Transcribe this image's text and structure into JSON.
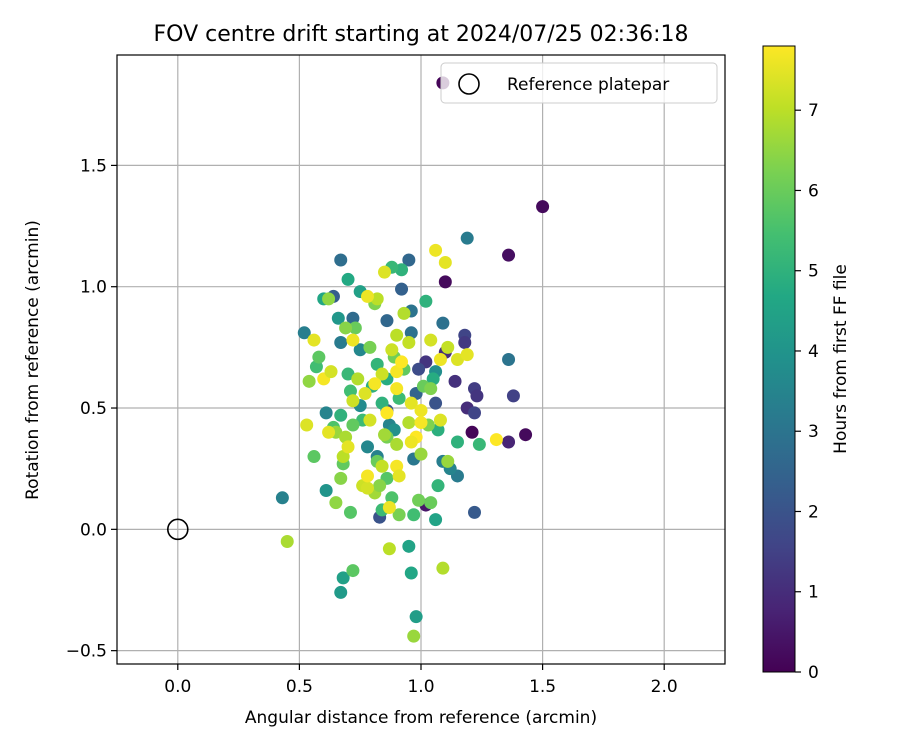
{
  "chart_data": {
    "type": "scatter",
    "title": "FOV centre drift starting at 2024/07/25 02:36:18",
    "xlabel": "Angular distance from reference (arcmin)",
    "ylabel": "Rotation from reference (arcmin)",
    "xlim": [
      -0.25,
      2.25
    ],
    "ylim": [
      -0.555,
      1.955
    ],
    "xticks": [
      "0.0",
      "0.5",
      "1.0",
      "1.5",
      "2.0"
    ],
    "yticks": [
      "−0.5",
      "0.0",
      "0.5",
      "1.0",
      "1.5"
    ],
    "grid": true,
    "legend": {
      "placement": "top-right",
      "label": "Reference platepar"
    },
    "reference_point": {
      "x": 0.0,
      "y": 0.0
    },
    "colorbar": {
      "label": "Hours from first FF file",
      "min": 0,
      "max": 7.8,
      "ticks": [
        "0",
        "1",
        "2",
        "3",
        "4",
        "5",
        "6",
        "7"
      ],
      "colormap": "viridis"
    },
    "points": [
      {
        "x": 1.09,
        "y": 1.84,
        "h": 0.1
      },
      {
        "x": 1.5,
        "y": 1.33,
        "h": 0.2
      },
      {
        "x": 1.36,
        "y": 1.13,
        "h": 0.3
      },
      {
        "x": 1.1,
        "y": 1.02,
        "h": 0.2
      },
      {
        "x": 1.43,
        "y": 0.39,
        "h": 0.2
      },
      {
        "x": 1.21,
        "y": 0.4,
        "h": 0.1
      },
      {
        "x": 1.36,
        "y": 0.36,
        "h": 0.8
      },
      {
        "x": 1.38,
        "y": 0.55,
        "h": 1.5
      },
      {
        "x": 1.22,
        "y": 0.58,
        "h": 1.4
      },
      {
        "x": 1.23,
        "y": 0.55,
        "h": 1.2
      },
      {
        "x": 1.18,
        "y": 0.8,
        "h": 1.6
      },
      {
        "x": 1.18,
        "y": 0.77,
        "h": 1.3
      },
      {
        "x": 1.19,
        "y": 0.5,
        "h": 1.0
      },
      {
        "x": 1.22,
        "y": 0.48,
        "h": 1.6
      },
      {
        "x": 1.14,
        "y": 0.61,
        "h": 1.1
      },
      {
        "x": 1.1,
        "y": 0.73,
        "h": 1.0
      },
      {
        "x": 1.02,
        "y": 0.69,
        "h": 1.2
      },
      {
        "x": 0.99,
        "y": 0.66,
        "h": 1.8
      },
      {
        "x": 1.06,
        "y": 0.52,
        "h": 2.0
      },
      {
        "x": 0.98,
        "y": 0.56,
        "h": 2.5
      },
      {
        "x": 1.02,
        "y": 0.1,
        "h": 0.5
      },
      {
        "x": 1.22,
        "y": 0.07,
        "h": 2.2
      },
      {
        "x": 0.83,
        "y": 0.05,
        "h": 2.0
      },
      {
        "x": 0.86,
        "y": 0.49,
        "h": 2.2
      },
      {
        "x": 0.92,
        "y": 0.99,
        "h": 2.4
      },
      {
        "x": 0.95,
        "y": 1.11,
        "h": 2.6
      },
      {
        "x": 0.67,
        "y": 1.11,
        "h": 2.8
      },
      {
        "x": 0.64,
        "y": 0.96,
        "h": 2.3
      },
      {
        "x": 0.72,
        "y": 0.87,
        "h": 2.7
      },
      {
        "x": 0.96,
        "y": 0.81,
        "h": 2.9
      },
      {
        "x": 0.96,
        "y": 0.9,
        "h": 3.0
      },
      {
        "x": 0.86,
        "y": 0.86,
        "h": 2.6
      },
      {
        "x": 1.09,
        "y": 0.85,
        "h": 2.9
      },
      {
        "x": 1.19,
        "y": 1.2,
        "h": 3.2
      },
      {
        "x": 1.36,
        "y": 0.7,
        "h": 3.0
      },
      {
        "x": 0.52,
        "y": 0.81,
        "h": 3.3
      },
      {
        "x": 0.43,
        "y": 0.13,
        "h": 3.4
      },
      {
        "x": 0.61,
        "y": 0.48,
        "h": 3.5
      },
      {
        "x": 0.67,
        "y": 0.77,
        "h": 3.2
      },
      {
        "x": 0.75,
        "y": 0.74,
        "h": 3.6
      },
      {
        "x": 0.78,
        "y": 0.34,
        "h": 3.6
      },
      {
        "x": 0.82,
        "y": 0.3,
        "h": 3.4
      },
      {
        "x": 0.87,
        "y": 0.43,
        "h": 3.5
      },
      {
        "x": 0.97,
        "y": 0.29,
        "h": 3.1
      },
      {
        "x": 1.09,
        "y": 0.28,
        "h": 3.3
      },
      {
        "x": 1.15,
        "y": 0.22,
        "h": 3.2
      },
      {
        "x": 1.12,
        "y": 0.25,
        "h": 3.5
      },
      {
        "x": 1.06,
        "y": 0.65,
        "h": 3.8
      },
      {
        "x": 0.89,
        "y": 0.41,
        "h": 3.9
      },
      {
        "x": 0.75,
        "y": 0.51,
        "h": 3.7
      },
      {
        "x": 0.61,
        "y": 0.16,
        "h": 4.0
      },
      {
        "x": 0.67,
        "y": -0.26,
        "h": 4.2
      },
      {
        "x": 0.68,
        "y": -0.2,
        "h": 4.4
      },
      {
        "x": 0.96,
        "y": -0.18,
        "h": 4.6
      },
      {
        "x": 0.95,
        "y": -0.07,
        "h": 4.5
      },
      {
        "x": 0.98,
        "y": -0.36,
        "h": 4.3
      },
      {
        "x": 1.06,
        "y": 0.04,
        "h": 4.5
      },
      {
        "x": 1.05,
        "y": 0.62,
        "h": 4.8
      },
      {
        "x": 1.07,
        "y": 0.41,
        "h": 4.9
      },
      {
        "x": 0.7,
        "y": 1.03,
        "h": 4.7
      },
      {
        "x": 0.75,
        "y": 0.98,
        "h": 4.4
      },
      {
        "x": 0.6,
        "y": 0.95,
        "h": 4.6
      },
      {
        "x": 0.66,
        "y": 0.87,
        "h": 4.1
      },
      {
        "x": 0.92,
        "y": 1.07,
        "h": 5.0
      },
      {
        "x": 0.88,
        "y": 1.08,
        "h": 5.2
      },
      {
        "x": 1.02,
        "y": 0.94,
        "h": 5.0
      },
      {
        "x": 0.82,
        "y": 0.68,
        "h": 5.1
      },
      {
        "x": 0.7,
        "y": 0.64,
        "h": 5.2
      },
      {
        "x": 0.8,
        "y": 0.59,
        "h": 4.9
      },
      {
        "x": 0.91,
        "y": 0.54,
        "h": 5.3
      },
      {
        "x": 0.84,
        "y": 0.52,
        "h": 5.0
      },
      {
        "x": 0.86,
        "y": 0.62,
        "h": 4.8
      },
      {
        "x": 0.71,
        "y": 0.57,
        "h": 5.4
      },
      {
        "x": 0.67,
        "y": 0.47,
        "h": 5.0
      },
      {
        "x": 0.76,
        "y": 0.45,
        "h": 5.3
      },
      {
        "x": 1.15,
        "y": 0.36,
        "h": 5.0
      },
      {
        "x": 1.24,
        "y": 0.35,
        "h": 5.2
      },
      {
        "x": 1.07,
        "y": 0.18,
        "h": 5.1
      },
      {
        "x": 0.97,
        "y": 0.06,
        "h": 5.4
      },
      {
        "x": 0.84,
        "y": 0.08,
        "h": 5.3
      },
      {
        "x": 0.88,
        "y": 0.13,
        "h": 5.6
      },
      {
        "x": 0.72,
        "y": -0.17,
        "h": 5.8
      },
      {
        "x": 0.71,
        "y": 0.07,
        "h": 5.7
      },
      {
        "x": 0.57,
        "y": 0.67,
        "h": 5.4
      },
      {
        "x": 0.58,
        "y": 0.71,
        "h": 5.8
      },
      {
        "x": 0.68,
        "y": 0.27,
        "h": 5.9
      },
      {
        "x": 0.56,
        "y": 0.3,
        "h": 5.8
      },
      {
        "x": 0.64,
        "y": 0.42,
        "h": 5.6
      },
      {
        "x": 0.72,
        "y": 0.43,
        "h": 5.9
      },
      {
        "x": 0.82,
        "y": 0.28,
        "h": 6.0
      },
      {
        "x": 0.86,
        "y": 0.21,
        "h": 5.7
      },
      {
        "x": 0.99,
        "y": 0.12,
        "h": 6.1
      },
      {
        "x": 1.04,
        "y": 0.11,
        "h": 6.0
      },
      {
        "x": 0.91,
        "y": 0.06,
        "h": 6.2
      },
      {
        "x": 0.97,
        "y": -0.44,
        "h": 6.6
      },
      {
        "x": 0.73,
        "y": 0.83,
        "h": 6.0
      },
      {
        "x": 0.79,
        "y": 0.75,
        "h": 6.2
      },
      {
        "x": 0.89,
        "y": 0.71,
        "h": 6.1
      },
      {
        "x": 0.93,
        "y": 0.66,
        "h": 5.9
      },
      {
        "x": 1.01,
        "y": 0.59,
        "h": 6.0
      },
      {
        "x": 1.04,
        "y": 0.58,
        "h": 6.3
      },
      {
        "x": 0.69,
        "y": 0.83,
        "h": 6.4
      },
      {
        "x": 0.62,
        "y": 0.95,
        "h": 6.5
      },
      {
        "x": 0.81,
        "y": 0.93,
        "h": 6.3
      },
      {
        "x": 0.54,
        "y": 0.61,
        "h": 6.5
      },
      {
        "x": 0.65,
        "y": 0.4,
        "h": 6.6
      },
      {
        "x": 0.67,
        "y": 0.21,
        "h": 6.4
      },
      {
        "x": 0.65,
        "y": 0.11,
        "h": 6.5
      },
      {
        "x": 0.81,
        "y": 0.15,
        "h": 6.7
      },
      {
        "x": 0.83,
        "y": 0.18,
        "h": 6.4
      },
      {
        "x": 0.86,
        "y": 0.38,
        "h": 6.2
      },
      {
        "x": 1.03,
        "y": 0.43,
        "h": 6.3
      },
      {
        "x": 1.11,
        "y": 0.28,
        "h": 6.6
      },
      {
        "x": 0.45,
        "y": -0.05,
        "h": 6.8
      },
      {
        "x": 0.87,
        "y": -0.08,
        "h": 7.0
      },
      {
        "x": 1.09,
        "y": -0.16,
        "h": 6.9
      },
      {
        "x": 0.74,
        "y": 0.62,
        "h": 6.9
      },
      {
        "x": 0.68,
        "y": 0.3,
        "h": 7.0
      },
      {
        "x": 0.69,
        "y": 0.38,
        "h": 6.8
      },
      {
        "x": 0.84,
        "y": 0.26,
        "h": 7.1
      },
      {
        "x": 0.85,
        "y": 0.39,
        "h": 6.7
      },
      {
        "x": 0.9,
        "y": 0.35,
        "h": 6.8
      },
      {
        "x": 0.95,
        "y": 0.44,
        "h": 6.9
      },
      {
        "x": 1.0,
        "y": 0.31,
        "h": 6.6
      },
      {
        "x": 0.76,
        "y": 0.18,
        "h": 7.2
      },
      {
        "x": 0.78,
        "y": 0.17,
        "h": 7.3
      },
      {
        "x": 0.9,
        "y": 0.8,
        "h": 7.0
      },
      {
        "x": 0.88,
        "y": 0.74,
        "h": 7.2
      },
      {
        "x": 0.93,
        "y": 0.89,
        "h": 6.9
      },
      {
        "x": 0.95,
        "y": 0.77,
        "h": 7.1
      },
      {
        "x": 0.82,
        "y": 0.95,
        "h": 7.0
      },
      {
        "x": 0.84,
        "y": 0.64,
        "h": 7.2
      },
      {
        "x": 1.04,
        "y": 0.78,
        "h": 7.3
      },
      {
        "x": 1.11,
        "y": 0.75,
        "h": 7.1
      },
      {
        "x": 1.15,
        "y": 0.7,
        "h": 7.4
      },
      {
        "x": 1.19,
        "y": 0.72,
        "h": 7.5
      },
      {
        "x": 1.08,
        "y": 0.7,
        "h": 7.6
      },
      {
        "x": 1.1,
        "y": 1.1,
        "h": 7.5
      },
      {
        "x": 1.06,
        "y": 1.15,
        "h": 7.6
      },
      {
        "x": 0.85,
        "y": 1.06,
        "h": 7.4
      },
      {
        "x": 0.78,
        "y": 0.96,
        "h": 7.6
      },
      {
        "x": 0.56,
        "y": 0.78,
        "h": 7.5
      },
      {
        "x": 0.53,
        "y": 0.43,
        "h": 7.4
      },
      {
        "x": 0.62,
        "y": 0.4,
        "h": 7.5
      },
      {
        "x": 0.6,
        "y": 0.62,
        "h": 7.7
      },
      {
        "x": 0.63,
        "y": 0.65,
        "h": 7.3
      },
      {
        "x": 0.72,
        "y": 0.78,
        "h": 7.6
      },
      {
        "x": 0.77,
        "y": 0.56,
        "h": 7.4
      },
      {
        "x": 0.9,
        "y": 0.58,
        "h": 7.7
      },
      {
        "x": 0.96,
        "y": 0.52,
        "h": 7.5
      },
      {
        "x": 1.0,
        "y": 0.49,
        "h": 7.6
      },
      {
        "x": 0.86,
        "y": 0.48,
        "h": 7.8
      },
      {
        "x": 0.9,
        "y": 0.26,
        "h": 7.7
      },
      {
        "x": 0.91,
        "y": 0.22,
        "h": 7.5
      },
      {
        "x": 0.98,
        "y": 0.38,
        "h": 7.8
      },
      {
        "x": 0.96,
        "y": 0.36,
        "h": 7.6
      },
      {
        "x": 1.0,
        "y": 0.44,
        "h": 7.7
      },
      {
        "x": 1.08,
        "y": 0.45,
        "h": 7.4
      },
      {
        "x": 0.9,
        "y": 0.65,
        "h": 7.7
      },
      {
        "x": 0.92,
        "y": 0.69,
        "h": 7.8
      },
      {
        "x": 0.79,
        "y": 0.45,
        "h": 7.3
      },
      {
        "x": 0.7,
        "y": 0.34,
        "h": 7.5
      },
      {
        "x": 0.87,
        "y": 0.09,
        "h": 7.6
      },
      {
        "x": 1.31,
        "y": 0.37,
        "h": 7.8
      },
      {
        "x": 0.78,
        "y": 0.22,
        "h": 7.7
      },
      {
        "x": 0.81,
        "y": 0.6,
        "h": 7.7
      },
      {
        "x": 0.72,
        "y": 0.53,
        "h": 7.2
      }
    ]
  }
}
